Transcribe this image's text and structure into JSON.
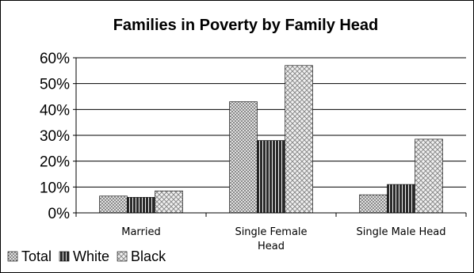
{
  "chart_data": {
    "type": "bar",
    "title": "Families in Poverty by Family Head",
    "categories": [
      "Married",
      "Single Female Head",
      "Single Male Head"
    ],
    "category_lines": [
      [
        "Married"
      ],
      [
        "Single Female",
        "Head"
      ],
      [
        "Single Male Head"
      ]
    ],
    "series": [
      {
        "name": "Total",
        "values": [
          0.065,
          0.43,
          0.07
        ]
      },
      {
        "name": "White",
        "values": [
          0.06,
          0.28,
          0.11
        ]
      },
      {
        "name": "Black",
        "values": [
          0.085,
          0.57,
          0.285
        ]
      }
    ],
    "ylim": [
      0,
      0.6
    ],
    "yticks": [
      0,
      0.1,
      0.2,
      0.3,
      0.4,
      0.5,
      0.6
    ],
    "ytick_labels": [
      "0%",
      "10%",
      "20%",
      "30%",
      "40%",
      "50%",
      "60%"
    ],
    "grid": true,
    "legend_position": "bottom-left",
    "colors": {
      "Total": "#b8b8b8",
      "White": "#3a3a3a",
      "Black": "#d4d4d4",
      "border": "#000000"
    }
  }
}
